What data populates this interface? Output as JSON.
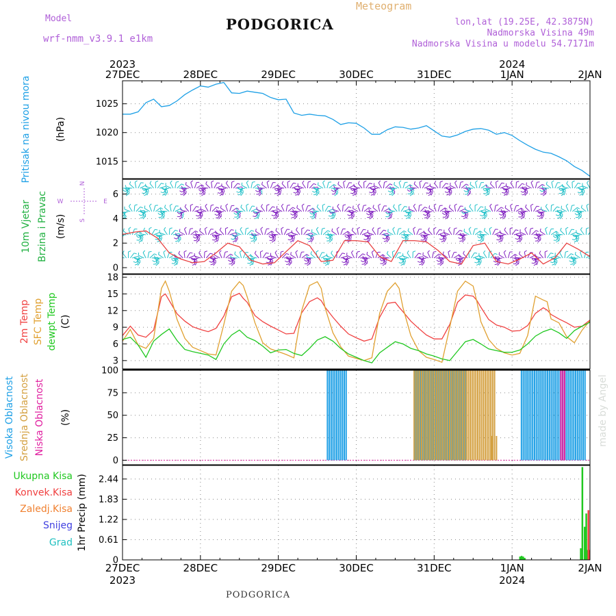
{
  "header": {
    "model_label": "Model",
    "model_name": "wrf-nmm_v3.9.1  e1km",
    "title": "PODGORICA",
    "meteogram": "Meteogram",
    "lonlat": "lon,lat (19.25E, 42.3875N)",
    "elevation": "Nadmorska Visina 49m",
    "model_elevation": "Nadmorska Visina u modelu 54.7171m"
  },
  "footer": {
    "station": "PODGORICA"
  },
  "watermark": "made by Angel",
  "colors": {
    "pressure": "#1ea0e6",
    "wind_speed": "#e84040",
    "t2m": "#f04040",
    "sfc": "#e0a030",
    "dewpt": "#20c820",
    "cloud_high": "#1ea0e6",
    "cloud_mid": "#d4a040",
    "cloud_low": "#e020a0",
    "precip_total": "#20c820",
    "precip_conv": "#f04040",
    "precip_frozen": "#f08030",
    "snow": "#4040e0",
    "graupel": "#20c0c0",
    "wind_barb_a": "#8020c0",
    "wind_barb_b": "#20c0c8"
  },
  "chart_data": [
    {
      "type": "line",
      "ylabel_name": "Pritisak na nivou mora",
      "ylabel_unit": "(hPa)",
      "yticks": [
        "1015",
        "1020",
        "1025"
      ],
      "ylim": [
        1012,
        1029
      ],
      "x_unit": "days since 27DEC 00UTC",
      "series": [
        {
          "name": "Pritisak na nivou mora",
          "x": [
            0,
            0.1,
            0.2,
            0.3,
            0.4,
            0.5,
            0.6,
            0.7,
            0.8,
            0.9,
            1.0,
            1.1,
            1.2,
            1.3,
            1.4,
            1.5,
            1.6,
            1.7,
            1.8,
            1.9,
            2.0,
            2.1,
            2.2,
            2.3,
            2.4,
            2.5,
            2.6,
            2.7,
            2.8,
            2.9,
            3.0,
            3.1,
            3.2,
            3.3,
            3.4,
            3.5,
            3.6,
            3.7,
            3.8,
            3.9,
            4.0,
            4.1,
            4.2,
            4.3,
            4.4,
            4.5,
            4.6,
            4.7,
            4.8,
            4.9,
            5.0,
            5.1,
            5.2,
            5.3,
            5.4,
            5.5,
            5.6,
            5.7,
            5.8,
            5.9,
            6.0
          ],
          "values": [
            1023.2,
            1023.2,
            1023.6,
            1025.2,
            1025.8,
            1024.5,
            1024.7,
            1025.5,
            1026.6,
            1027.4,
            1028.1,
            1027.9,
            1028.4,
            1028.7,
            1026.9,
            1026.8,
            1027.2,
            1027.0,
            1026.8,
            1026.1,
            1025.7,
            1025.8,
            1023.4,
            1023.0,
            1023.2,
            1023.0,
            1022.9,
            1022.3,
            1021.4,
            1021.7,
            1021.6,
            1020.8,
            1019.7,
            1019.7,
            1020.5,
            1021.0,
            1020.9,
            1020.6,
            1020.8,
            1021.2,
            1020.3,
            1019.4,
            1019.2,
            1019.6,
            1020.2,
            1020.6,
            1020.7,
            1020.4,
            1019.7,
            1020.0,
            1019.5,
            1018.6,
            1017.8,
            1017.1,
            1016.6,
            1016.4,
            1015.8,
            1015.1,
            1014.1,
            1013.4,
            1012.4
          ]
        }
      ],
      "top_date_labels": [
        "27DEC",
        "28DEC",
        "29DEC",
        "30DEC",
        "31DEC",
        "1JAN",
        "2JAN"
      ],
      "top_year_labels": [
        {
          "at": 0,
          "label": "2023"
        },
        {
          "at": 5,
          "label": "2024"
        }
      ]
    },
    {
      "type": "line",
      "ylabel_name": "10m Vjetar",
      "ylabel_name2": "Brzina i Pravac",
      "ylabel_unit": "(m/s)",
      "compass": [
        "N",
        "W",
        "E",
        "S"
      ],
      "yticks": [
        "0",
        "2",
        "4",
        "6"
      ],
      "ylim": [
        -0.5,
        7.2
      ],
      "series": [
        {
          "name": "Brzina",
          "x": [
            0,
            0.15,
            0.3,
            0.45,
            0.6,
            0.75,
            0.9,
            1.05,
            1.2,
            1.35,
            1.5,
            1.65,
            1.8,
            1.95,
            2.1,
            2.25,
            2.4,
            2.55,
            2.7,
            2.85,
            3.0,
            3.15,
            3.3,
            3.45,
            3.6,
            3.75,
            3.9,
            4.05,
            4.2,
            4.35,
            4.5,
            4.65,
            4.8,
            4.95,
            5.1,
            5.25,
            5.4,
            5.55,
            5.7,
            5.85,
            6.0
          ],
          "values": [
            2.7,
            2.9,
            3.0,
            2.4,
            1.2,
            0.7,
            0.4,
            0.5,
            1.2,
            2.0,
            1.7,
            0.6,
            0.3,
            0.4,
            1.3,
            2.2,
            1.8,
            0.5,
            0.6,
            2.2,
            2.2,
            2.1,
            0.9,
            0.5,
            2.2,
            2.2,
            2.1,
            1.4,
            0.5,
            0.3,
            1.8,
            2.0,
            0.5,
            0.3,
            0.7,
            1.2,
            0.3,
            0.8,
            2.0,
            1.5,
            0.9
          ]
        }
      ]
    },
    {
      "type": "line",
      "ylabels": [
        "2m Temp",
        "SFC Temp",
        "dewpt Temp"
      ],
      "ylabel_unit": "(C)",
      "yticks": [
        "3",
        "6",
        "9",
        "12",
        "15",
        "18"
      ],
      "ylim": [
        1.5,
        18.5
      ],
      "series": [
        {
          "name": "2m Temp",
          "x": [
            0,
            0.1,
            0.2,
            0.3,
            0.4,
            0.5,
            0.55,
            0.6,
            0.7,
            0.8,
            0.9,
            1.0,
            1.1,
            1.2,
            1.3,
            1.4,
            1.5,
            1.55,
            1.6,
            1.7,
            1.8,
            1.9,
            2.0,
            2.1,
            2.2,
            2.3,
            2.4,
            2.5,
            2.55,
            2.6,
            2.7,
            2.8,
            2.9,
            3.0,
            3.1,
            3.2,
            3.3,
            3.4,
            3.5,
            3.55,
            3.6,
            3.7,
            3.8,
            3.9,
            4.0,
            4.1,
            4.2,
            4.3,
            4.4,
            4.5,
            4.55,
            4.6,
            4.7,
            4.8,
            4.9,
            5.0,
            5.1,
            5.2,
            5.3,
            5.4,
            5.45,
            5.5,
            5.6,
            5.7,
            5.8,
            5.9,
            6.0
          ],
          "values": [
            7.5,
            9.2,
            7.6,
            7.2,
            8.5,
            14.5,
            15.0,
            13.8,
            11.4,
            10.1,
            9.1,
            8.6,
            8.2,
            8.8,
            11.0,
            14.5,
            15.1,
            14.2,
            13.5,
            11.1,
            10.0,
            9.2,
            8.5,
            7.8,
            7.9,
            11.6,
            13.6,
            14.3,
            13.8,
            12.6,
            10.8,
            9.2,
            7.8,
            7.1,
            6.5,
            6.9,
            10.8,
            13.3,
            13.5,
            12.6,
            11.8,
            10.1,
            8.8,
            7.6,
            6.9,
            6.9,
            9.5,
            13.5,
            14.8,
            14.6,
            13.8,
            12.6,
            10.4,
            9.4,
            9.0,
            8.3,
            8.4,
            9.3,
            11.5,
            12.5,
            12.1,
            11.3,
            10.5,
            9.8,
            9.0,
            9.2,
            10.3
          ]
        },
        {
          "name": "SFC Temp",
          "x": [
            0,
            0.1,
            0.2,
            0.3,
            0.4,
            0.5,
            0.55,
            0.6,
            0.7,
            0.8,
            0.9,
            1.0,
            1.1,
            1.2,
            1.3,
            1.4,
            1.5,
            1.55,
            1.6,
            1.7,
            1.8,
            1.9,
            2.0,
            2.1,
            2.2,
            2.3,
            2.4,
            2.5,
            2.55,
            2.6,
            2.7,
            2.8,
            2.9,
            3.0,
            3.1,
            3.2,
            3.3,
            3.4,
            3.5,
            3.55,
            3.6,
            3.7,
            3.8,
            3.9,
            4.0,
            4.1,
            4.2,
            4.3,
            4.4,
            4.5,
            4.55,
            4.6,
            4.7,
            4.8,
            4.9,
            5.0,
            5.1,
            5.2,
            5.3,
            5.4,
            5.45,
            5.5,
            5.6,
            5.7,
            5.8,
            5.9,
            6.0
          ],
          "values": [
            6.5,
            8.6,
            5.8,
            5.2,
            7.0,
            16.0,
            17.3,
            15.5,
            10.4,
            7.0,
            5.4,
            4.8,
            4.2,
            4.0,
            9.5,
            15.5,
            17.2,
            16.5,
            14.5,
            9.8,
            6.2,
            5.1,
            4.6,
            4.1,
            3.5,
            12.0,
            16.5,
            17.2,
            16.0,
            12.5,
            8.0,
            5.5,
            3.8,
            3.4,
            3.0,
            3.5,
            11.5,
            15.5,
            17.0,
            16.0,
            12.5,
            7.5,
            4.8,
            3.6,
            3.2,
            2.7,
            9.0,
            15.5,
            17.3,
            16.4,
            13.5,
            10.0,
            6.8,
            5.2,
            4.4,
            4.0,
            4.3,
            7.5,
            14.6,
            13.9,
            13.6,
            10.5,
            9.8,
            7.3,
            6.2,
            8.5,
            10.2
          ]
        },
        {
          "name": "dewpt Temp",
          "x": [
            0,
            0.1,
            0.2,
            0.3,
            0.4,
            0.5,
            0.6,
            0.7,
            0.8,
            0.9,
            1.0,
            1.1,
            1.2,
            1.3,
            1.4,
            1.5,
            1.6,
            1.7,
            1.8,
            1.9,
            2.0,
            2.1,
            2.2,
            2.3,
            2.4,
            2.5,
            2.6,
            2.7,
            2.8,
            2.9,
            3.0,
            3.1,
            3.2,
            3.3,
            3.4,
            3.5,
            3.6,
            3.7,
            3.8,
            3.9,
            4.0,
            4.1,
            4.2,
            4.3,
            4.4,
            4.5,
            4.6,
            4.7,
            4.8,
            4.9,
            5.0,
            5.1,
            5.2,
            5.3,
            5.4,
            5.5,
            5.6,
            5.7,
            5.8,
            5.9,
            6.0
          ],
          "values": [
            6.8,
            7.2,
            5.8,
            3.6,
            6.5,
            7.7,
            8.7,
            6.6,
            5.0,
            4.6,
            4.3,
            4.0,
            3.2,
            6.0,
            7.6,
            8.5,
            7.2,
            6.6,
            5.6,
            4.4,
            4.9,
            5.0,
            4.3,
            3.9,
            5.2,
            6.7,
            7.3,
            6.5,
            5.2,
            4.2,
            3.6,
            3.0,
            2.6,
            4.4,
            5.4,
            6.4,
            6.0,
            5.2,
            4.8,
            4.2,
            3.8,
            3.3,
            3.0,
            4.7,
            6.4,
            6.8,
            6.0,
            5.1,
            4.8,
            4.5,
            4.5,
            4.9,
            6.0,
            7.4,
            8.2,
            8.7,
            8.0,
            7.0,
            8.4,
            9.2,
            9.9
          ]
        }
      ]
    },
    {
      "type": "bar",
      "ylabels": [
        "Visoka Oblacnost",
        "Srednja Oblacnost",
        "Niska Oblacnost"
      ],
      "ylabel_unit": "(%)",
      "yticks": [
        "0",
        "25",
        "50",
        "75",
        "100"
      ],
      "ylim": [
        -5,
        100
      ],
      "series": [
        {
          "name": "Visoka Oblacnost",
          "periods": [
            [
              2.63,
              2.87
            ],
            [
              3.75,
              4.42
            ],
            [
              5.12,
              5.95
            ]
          ],
          "values": [
            100,
            100,
            100
          ]
        },
        {
          "name": "Srednja Oblacnost",
          "periods": [
            [
              3.73,
              4.78
            ]
          ],
          "values": [
            100
          ],
          "tail": [
            [
              4.74,
              27
            ],
            [
              4.8,
              27
            ]
          ]
        },
        {
          "name": "Niska Oblacnost",
          "periods": [
            [
              5.6,
              5.65
            ]
          ],
          "values": [
            100
          ]
        }
      ]
    },
    {
      "type": "bar",
      "ylabels": [
        "Ukupna Kisa",
        "Konvek.Kisa",
        "Zaledj.Kisa",
        "Snijeg",
        "Grad"
      ],
      "ylabel_unit": "1hr Precip (mm)",
      "yticks": [
        "0",
        "0.61",
        "1.22",
        "1.83",
        "2.44"
      ],
      "ylim": [
        0,
        2.85
      ],
      "series": [
        {
          "name": "Ukupna Kisa",
          "x": [
            5.1,
            5.12,
            5.14,
            5.16,
            5.88,
            5.9,
            5.93,
            5.95,
            5.97
          ],
          "values": [
            0.1,
            0.12,
            0.1,
            0.06,
            0.35,
            2.8,
            1.0,
            1.4,
            0.3
          ]
        },
        {
          "name": "Konvek.Kisa",
          "x": [
            5.96,
            5.98
          ],
          "values": [
            1.5,
            0.3
          ]
        },
        {
          "name": "Zaledj.Kisa",
          "x": [],
          "values": []
        },
        {
          "name": "Snijeg",
          "x": [],
          "values": []
        },
        {
          "name": "Grad",
          "x": [],
          "values": []
        }
      ],
      "bottom_date_labels": [
        "27DEC",
        "28DEC",
        "29DEC",
        "30DEC",
        "31DEC",
        "1JAN",
        "2JAN"
      ],
      "bottom_year_labels": [
        {
          "at": 0,
          "label": "2023"
        },
        {
          "at": 5,
          "label": "2024"
        }
      ]
    }
  ]
}
